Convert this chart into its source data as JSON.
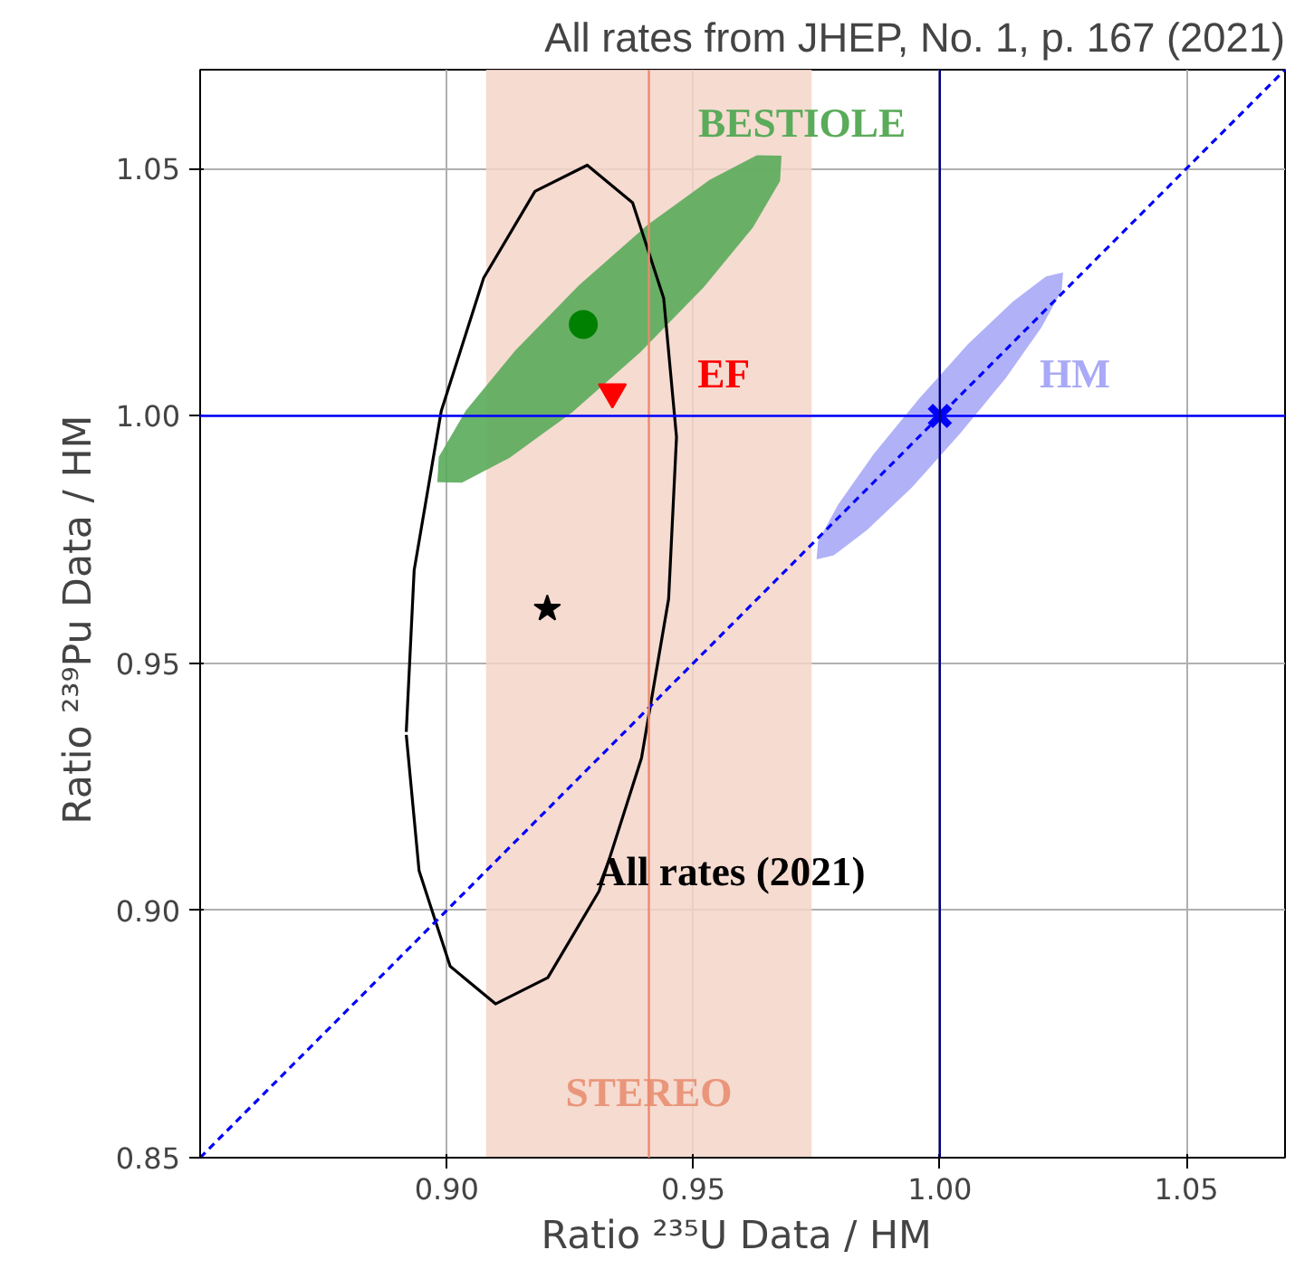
{
  "chart_data": {
    "type": "scatter",
    "title": "All rates from JHEP, No. 1, p. 167 (2021)",
    "xlabel": "Ratio ²³⁵U  Data / HM",
    "ylabel": "Ratio ²³⁹Pu  Data / HM",
    "xlim": [
      0.85,
      1.07
    ],
    "ylim": [
      0.85,
      1.07
    ],
    "xticks": [
      {
        "value": 0.9,
        "label": "0.90"
      },
      {
        "value": 0.95,
        "label": "0.95"
      },
      {
        "value": 1.0,
        "label": "1.00"
      },
      {
        "value": 1.05,
        "label": "1.05"
      }
    ],
    "yticks": [
      {
        "value": 0.85,
        "label": "0.85"
      },
      {
        "value": 0.9,
        "label": "0.90"
      },
      {
        "value": 0.95,
        "label": "0.95"
      },
      {
        "value": 1.0,
        "label": "1.00"
      },
      {
        "value": 1.05,
        "label": "1.05"
      }
    ],
    "grid": true,
    "series": [
      {
        "type": "area",
        "name": "BESTIOLE",
        "color": "#5aab5a",
        "x": [
          0.9679,
          0.9676,
          0.9621,
          0.9521,
          0.9392,
          0.9254,
          0.9127,
          0.9031,
          0.8981,
          0.8984,
          0.9039,
          0.9139,
          0.9268,
          0.9406,
          0.9533,
          0.9629
        ],
        "values": [
          1.0526,
          1.0475,
          1.0381,
          1.026,
          1.0128,
          1.0007,
          0.9915,
          0.9865,
          0.9866,
          0.9917,
          1.0011,
          1.0132,
          1.0264,
          1.0385,
          1.0477,
          1.0527
        ]
      },
      {
        "name": "EF",
        "marker": "triangle",
        "color": "#ff0000",
        "x": [
          0.9336
        ],
        "values": [
          1.0048
        ]
      },
      {
        "type": "area",
        "name": "HM",
        "color": "#a9a9f7",
        "x": [
          1.025,
          1.0247,
          1.0206,
          1.0134,
          1.0041,
          0.9943,
          0.9852,
          0.9785,
          0.975,
          0.9753,
          0.9794,
          0.9866,
          0.9959,
          1.0057,
          1.0148,
          1.0215
        ],
        "values": [
          1.029,
          1.0254,
          1.0179,
          1.0077,
          0.9964,
          0.9855,
          0.9769,
          0.9718,
          0.971,
          0.9746,
          0.9821,
          0.9923,
          1.0036,
          1.0145,
          1.0231,
          1.0282
        ]
      },
      {
        "type": "line",
        "name": "All rates (2021)",
        "color": "#000000",
        "x": [
          0.8918,
          0.8934,
          0.8989,
          0.9075,
          0.9179,
          0.9285,
          0.9377,
          0.944,
          0.9466,
          0.945,
          0.9395,
          0.9309,
          0.9205,
          0.9099,
          0.9007,
          0.8944,
          0.8918
        ],
        "values": [
          0.9361,
          0.9688,
          1.001,
          1.0279,
          1.0454,
          1.0507,
          1.0431,
          1.0238,
          0.9957,
          0.963,
          0.9308,
          0.9039,
          0.8864,
          0.8811,
          0.8887,
          0.908,
          0.9355
        ]
      },
      {
        "marker": "circle",
        "color": "#008000",
        "x": [
          0.9277
        ],
        "values": [
          1.0185
        ]
      },
      {
        "marker": "star",
        "color": "#000000",
        "x": [
          0.9204
        ],
        "values": [
          0.961
        ]
      },
      {
        "marker": "cross",
        "color": "#0000ff",
        "x": [
          1.0
        ],
        "values": [
          1.0
        ]
      },
      {
        "type": "line",
        "line_style": "dashed",
        "color": "#0000ff",
        "x": [
          0.85,
          1.07
        ],
        "values": [
          0.85,
          1.07
        ]
      }
    ],
    "bands": [
      {
        "axis": "x",
        "from": 0.908,
        "to": 0.974,
        "label": "STEREO",
        "color": "#f5d5c9"
      }
    ],
    "ref_lines": [
      {
        "axis": "x",
        "value": 0.941,
        "color": "#ec8a6e"
      },
      {
        "axis": "y",
        "value": 1.0,
        "color": "#0000ff"
      },
      {
        "axis": "x",
        "value": 1.0,
        "color": "#000080"
      }
    ]
  }
}
